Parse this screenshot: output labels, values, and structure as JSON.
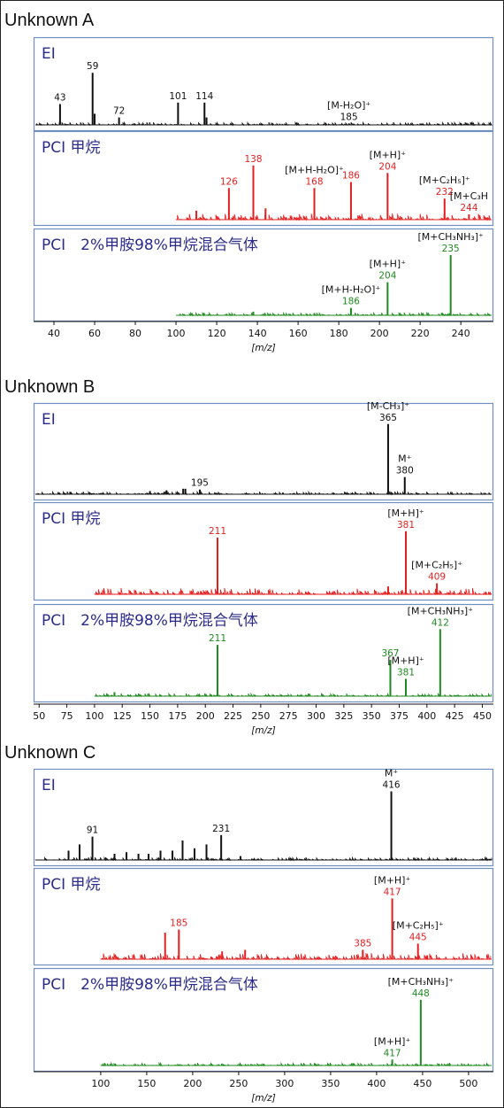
{
  "colors": {
    "ei": "#111111",
    "pci_methane": "#e41e1e",
    "pci_mix": "#1f8a1f",
    "panel_border": "#6f8fc0",
    "panel_label": "#2b2b8c"
  },
  "xaxis_label": "[m/z]",
  "chart_data": [
    {
      "title": "Unknown A",
      "type": "line",
      "xlim": [
        30,
        256
      ],
      "xticks": [
        40,
        60,
        80,
        100,
        120,
        140,
        160,
        180,
        200,
        220,
        240
      ],
      "xlabel": "[m/z]",
      "panels": [
        {
          "label": "EI",
          "series": "EI",
          "color": "#111111",
          "xstart": 30,
          "peaks": [
            [
              43,
              0.28
            ],
            [
              59,
              0.7
            ],
            [
              60,
              0.15
            ],
            [
              72,
              0.1
            ],
            [
              101,
              0.3
            ],
            [
              114,
              0.3
            ],
            [
              115,
              0.1
            ],
            [
              185,
              0.02
            ]
          ],
          "annotations": [
            {
              "mz": 43,
              "text": "43"
            },
            {
              "mz": 59,
              "text": "59"
            },
            {
              "mz": 72,
              "text": "72"
            },
            {
              "mz": 101,
              "text": "101"
            },
            {
              "mz": 114,
              "text": "114"
            },
            {
              "mz": 185,
              "text": "185",
              "above": "[M-H₂O]⁺"
            }
          ]
        },
        {
          "label": "PCI 甲烷",
          "series": "PCI 甲烷",
          "color": "#e41e1e",
          "xstart": 100,
          "peaks": [
            [
              110,
              0.12
            ],
            [
              126,
              0.42
            ],
            [
              138,
              0.72
            ],
            [
              144,
              0.15
            ],
            [
              168,
              0.42
            ],
            [
              186,
              0.5
            ],
            [
              204,
              0.62
            ],
            [
              232,
              0.28
            ],
            [
              244,
              0.07
            ]
          ],
          "annotations": [
            {
              "mz": 126,
              "text": "126"
            },
            {
              "mz": 138,
              "text": "138"
            },
            {
              "mz": 168,
              "text": "168",
              "above": "[M+H-H₂O]⁺"
            },
            {
              "mz": 186,
              "text": "186"
            },
            {
              "mz": 204,
              "text": "204",
              "above": "[M+H]⁺"
            },
            {
              "mz": 232,
              "text": "232",
              "above": "[M+C₂H₅]⁺"
            },
            {
              "mz": 244,
              "text": "244",
              "above": "[M+C₃H"
            }
          ]
        },
        {
          "label": "PCI　2%甲胺98%甲烷混合气体",
          "series": "PCI 2%甲胺98%甲烷混合气体",
          "color": "#1f8a1f",
          "xstart": 100,
          "peaks": [
            [
              138,
              0.05
            ],
            [
              168,
              0.03
            ],
            [
              186,
              0.1
            ],
            [
              204,
              0.45
            ],
            [
              235,
              0.82
            ]
          ],
          "annotations": [
            {
              "mz": 186,
              "text": "186",
              "above": "[M+H-H₂O]⁺"
            },
            {
              "mz": 204,
              "text": "204",
              "above": "[M+H]⁺"
            },
            {
              "mz": 235,
              "text": "235",
              "above": "[M+CH₃NH₃]⁺"
            }
          ]
        }
      ]
    },
    {
      "title": "Unknown B",
      "type": "line",
      "xlim": [
        45,
        460
      ],
      "xticks": [
        50,
        75,
        100,
        125,
        150,
        175,
        200,
        225,
        250,
        275,
        300,
        325,
        350,
        375,
        400,
        425,
        450
      ],
      "xlabel": "[m/z]",
      "panels": [
        {
          "label": "EI",
          "series": "EI",
          "color": "#111111",
          "xstart": 45,
          "peaks": [
            [
              78,
              0.03
            ],
            [
              150,
              0.04
            ],
            [
              165,
              0.05
            ],
            [
              180,
              0.07
            ],
            [
              182,
              0.07
            ],
            [
              195,
              0.06
            ],
            [
              270,
              0.02
            ],
            [
              365,
              0.9
            ],
            [
              380,
              0.22
            ]
          ],
          "annotations": [
            {
              "mz": 195,
              "text": "195"
            },
            {
              "mz": 365,
              "text": "365",
              "above": "[M-CH₃]⁺"
            },
            {
              "mz": 380,
              "text": "380",
              "above": "M⁺"
            }
          ]
        },
        {
          "label": "PCI 甲烷",
          "series": "PCI 甲烷",
          "color": "#e41e1e",
          "xstart": 100,
          "peaks": [
            [
              196,
              0.04
            ],
            [
              211,
              0.72
            ],
            [
              365,
              0.1
            ],
            [
              381,
              0.8
            ],
            [
              409,
              0.14
            ]
          ],
          "annotations": [
            {
              "mz": 211,
              "text": "211"
            },
            {
              "mz": 381,
              "text": "381",
              "above": "[M+H]⁺"
            },
            {
              "mz": 409,
              "text": "409",
              "above": "[M+C₂H₅]⁺"
            }
          ]
        },
        {
          "label": "PCI　2%甲胺98%甲烷混合气体",
          "series": "PCI 2%甲胺98%甲烷混合气体",
          "color": "#1f8a1f",
          "xstart": 100,
          "peaks": [
            [
              118,
              0.05
            ],
            [
              211,
              0.65
            ],
            [
              367,
              0.46
            ],
            [
              381,
              0.22
            ],
            [
              412,
              0.85
            ]
          ],
          "annotations": [
            {
              "mz": 211,
              "text": "211"
            },
            {
              "mz": 367,
              "text": "367"
            },
            {
              "mz": 381,
              "text": "381",
              "above": "[M+H]⁺"
            },
            {
              "mz": 412,
              "text": "412",
              "above": "[M+CH₃NH₃]⁺"
            }
          ]
        }
      ]
    },
    {
      "title": "Unknown C",
      "type": "line",
      "xlim": [
        27,
        527
      ],
      "xticks": [
        100,
        150,
        200,
        250,
        300,
        350,
        400,
        450,
        500
      ],
      "xlabel": "[m/z]",
      "panels": [
        {
          "label": "EI",
          "series": "EI",
          "color": "#111111",
          "xstart": 27,
          "peaks": [
            [
              65,
              0.12
            ],
            [
              77,
              0.2
            ],
            [
              91,
              0.3
            ],
            [
              115,
              0.08
            ],
            [
              128,
              0.1
            ],
            [
              141,
              0.08
            ],
            [
              152,
              0.08
            ],
            [
              165,
              0.12
            ],
            [
              178,
              0.12
            ],
            [
              189,
              0.25
            ],
            [
              202,
              0.15
            ],
            [
              215,
              0.2
            ],
            [
              231,
              0.32
            ],
            [
              252,
              0.05
            ],
            [
              416,
              0.88
            ]
          ],
          "annotations": [
            {
              "mz": 91,
              "text": "91"
            },
            {
              "mz": 231,
              "text": "231"
            },
            {
              "mz": 416,
              "text": "416",
              "above": "M⁺"
            }
          ]
        },
        {
          "label": "PCI 甲烷",
          "series": "PCI 甲烷",
          "color": "#e41e1e",
          "xstart": 100,
          "peaks": [
            [
              170,
              0.34
            ],
            [
              185,
              0.38
            ],
            [
              232,
              0.1
            ],
            [
              257,
              0.12
            ],
            [
              385,
              0.12
            ],
            [
              417,
              0.78
            ],
            [
              445,
              0.2
            ],
            [
              455,
              0.05
            ]
          ],
          "annotations": [
            {
              "mz": 185,
              "text": "185"
            },
            {
              "mz": 385,
              "text": "385"
            },
            {
              "mz": 417,
              "text": "417",
              "above": "[M+H]⁺"
            },
            {
              "mz": 445,
              "text": "445",
              "above": "[M+C₂H₅]⁺"
            }
          ]
        },
        {
          "label": "PCI　2%甲胺98%甲烷混合气体",
          "series": "PCI 2%甲胺98%甲烷混合气体",
          "color": "#1f8a1f",
          "xstart": 100,
          "peaks": [
            [
              417,
              0.07
            ],
            [
              448,
              0.78
            ]
          ],
          "annotations": [
            {
              "mz": 417,
              "text": "417",
              "above": "[M+H]⁺"
            },
            {
              "mz": 448,
              "text": "448",
              "above": "[M+CH₃NH₃]⁺"
            }
          ]
        }
      ]
    }
  ]
}
